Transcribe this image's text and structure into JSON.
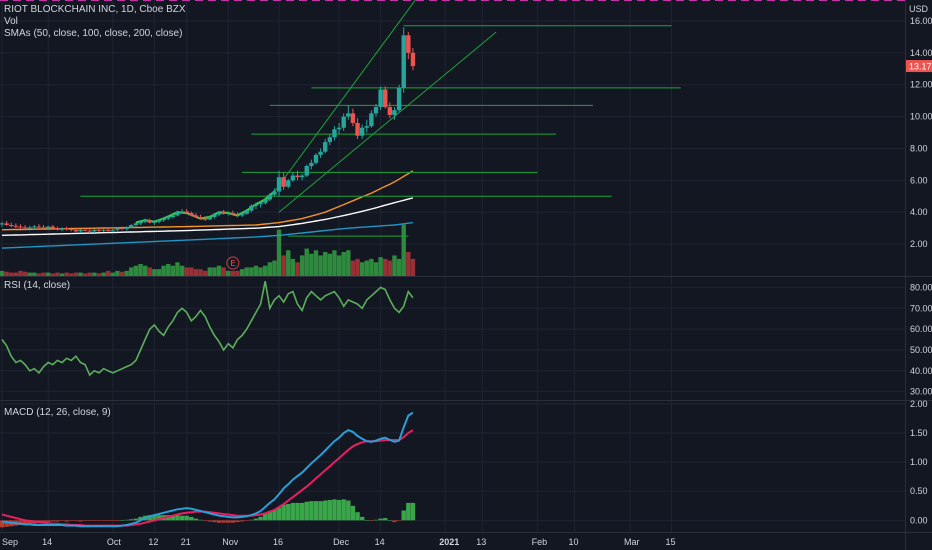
{
  "header": {
    "title": "RIOT BLOCKCHAIN INC, 1D, Cboe BZX",
    "vol_label": "Vol",
    "sma_label": "SMAs (50, close, 100, close, 200, close)",
    "currency": "USD",
    "price_tag": "13.17"
  },
  "rsi": {
    "label": "RSI (14, close)",
    "upper": 70,
    "lower": 30
  },
  "macd": {
    "label": "MACD (12, 26, close, 9)"
  },
  "colors": {
    "background": "#131722",
    "grid": "#1f2433",
    "up": "#26a69a",
    "up_fill": "#2e9e3e",
    "down": "#ef5350",
    "sma50": "#f5922b",
    "sma100": "#ffffff",
    "sma200": "#2196c6",
    "trend": "#1aa53a",
    "rsi": "#5bae5b",
    "rsi_band": "#2a1d44",
    "rsi_upper": "#26c6da",
    "rsi_lower": "#c832a8",
    "macd": "#2a9fd8",
    "signal": "#e91e63",
    "hist": "#3aa64a",
    "price_tag": "#ef5350",
    "event_badge": "#b23a3a"
  },
  "chart_data": [
    {
      "type": "candlestick",
      "name": "price",
      "y_axis_ticks": [
        "16.00",
        "14.00",
        "12.00",
        "10.00",
        "8.00",
        "6.00",
        "4.00",
        "2.00"
      ],
      "ylim": [
        0,
        17
      ],
      "x_axis_labels": [
        "Sep",
        "14",
        "Oct",
        "12",
        "21",
        "Nov",
        "16",
        "Dec",
        "14",
        "2021",
        "13",
        "Feb",
        "10",
        "Mar",
        "15"
      ],
      "xlim": [
        0,
        196
      ],
      "x_ticks_index": [
        0,
        10,
        24,
        33,
        40,
        49,
        60,
        73,
        82,
        96,
        104,
        116,
        124,
        136,
        145
      ],
      "ohlc": [
        [
          0,
          3.25,
          3.4,
          3.1,
          3.3
        ],
        [
          1,
          3.3,
          3.45,
          3.15,
          3.2
        ],
        [
          2,
          3.2,
          3.35,
          3.05,
          3.15
        ],
        [
          3,
          3.15,
          3.3,
          3.0,
          3.1
        ],
        [
          4,
          3.1,
          3.25,
          2.95,
          3.05
        ],
        [
          5,
          3.05,
          3.2,
          2.9,
          3.0
        ],
        [
          6,
          3.0,
          3.15,
          2.85,
          3.05
        ],
        [
          7,
          3.05,
          3.2,
          2.9,
          3.1
        ],
        [
          8,
          3.1,
          3.25,
          2.95,
          3.05
        ],
        [
          9,
          3.05,
          3.2,
          2.9,
          3.0
        ],
        [
          10,
          3.0,
          3.15,
          2.9,
          3.1
        ],
        [
          11,
          3.1,
          3.2,
          2.95,
          3.0
        ],
        [
          12,
          3.0,
          3.1,
          2.85,
          2.9
        ],
        [
          13,
          2.9,
          3.05,
          2.8,
          3.0
        ],
        [
          14,
          3.0,
          3.1,
          2.85,
          2.95
        ],
        [
          15,
          2.95,
          3.05,
          2.8,
          2.9
        ],
        [
          16,
          2.9,
          3.0,
          2.75,
          2.8
        ],
        [
          17,
          2.8,
          2.95,
          2.7,
          2.9
        ],
        [
          18,
          2.9,
          3.0,
          2.8,
          2.85
        ],
        [
          19,
          2.85,
          2.95,
          2.7,
          2.8
        ],
        [
          20,
          2.8,
          2.95,
          2.7,
          2.9
        ],
        [
          21,
          2.9,
          3.0,
          2.75,
          2.85
        ],
        [
          22,
          2.85,
          2.95,
          2.75,
          2.9
        ],
        [
          23,
          2.9,
          3.0,
          2.8,
          2.85
        ],
        [
          24,
          2.85,
          2.95,
          2.75,
          2.9
        ],
        [
          25,
          2.9,
          3.05,
          2.8,
          3.0
        ],
        [
          26,
          3.0,
          3.1,
          2.9,
          2.95
        ],
        [
          27,
          2.95,
          3.1,
          2.85,
          3.05
        ],
        [
          28,
          3.05,
          3.25,
          3.0,
          3.2
        ],
        [
          29,
          3.2,
          3.35,
          3.1,
          3.3
        ],
        [
          30,
          3.3,
          3.5,
          3.2,
          3.4
        ],
        [
          31,
          3.4,
          3.6,
          3.3,
          3.5
        ],
        [
          32,
          3.5,
          3.6,
          3.3,
          3.35
        ],
        [
          33,
          3.35,
          3.5,
          3.2,
          3.4
        ],
        [
          34,
          3.4,
          3.55,
          3.3,
          3.5
        ],
        [
          35,
          3.5,
          3.7,
          3.4,
          3.6
        ],
        [
          36,
          3.6,
          3.8,
          3.5,
          3.7
        ],
        [
          37,
          3.7,
          3.9,
          3.6,
          3.8
        ],
        [
          38,
          3.8,
          4.1,
          3.75,
          4.0
        ],
        [
          39,
          4.0,
          4.2,
          3.9,
          4.05
        ],
        [
          40,
          4.05,
          4.2,
          3.9,
          3.95
        ],
        [
          41,
          3.95,
          4.05,
          3.75,
          3.8
        ],
        [
          42,
          3.8,
          3.95,
          3.65,
          3.7
        ],
        [
          43,
          3.7,
          3.85,
          3.55,
          3.6
        ],
        [
          44,
          3.6,
          3.75,
          3.45,
          3.55
        ],
        [
          45,
          3.55,
          3.8,
          3.5,
          3.7
        ],
        [
          46,
          3.7,
          3.95,
          3.6,
          3.85
        ],
        [
          47,
          3.85,
          4.05,
          3.75,
          4.0
        ],
        [
          48,
          4.0,
          4.15,
          3.85,
          3.9
        ],
        [
          49,
          3.9,
          4.05,
          3.8,
          3.95
        ],
        [
          50,
          3.95,
          4.1,
          3.8,
          3.85
        ],
        [
          51,
          3.85,
          4.0,
          3.7,
          3.8
        ],
        [
          52,
          3.8,
          4.0,
          3.7,
          3.9
        ],
        [
          53,
          3.9,
          4.2,
          3.85,
          4.1
        ],
        [
          54,
          4.1,
          4.5,
          4.0,
          4.4
        ],
        [
          55,
          4.4,
          4.6,
          4.2,
          4.5
        ],
        [
          56,
          4.5,
          4.7,
          4.3,
          4.6
        ],
        [
          57,
          4.6,
          4.9,
          4.5,
          4.8
        ],
        [
          58,
          4.8,
          5.2,
          4.7,
          5.1
        ],
        [
          59,
          5.1,
          5.5,
          5.0,
          5.3
        ],
        [
          60,
          5.3,
          6.6,
          5.0,
          6.2
        ],
        [
          61,
          6.2,
          6.5,
          5.4,
          5.6
        ],
        [
          62,
          5.6,
          6.1,
          5.5,
          6.0
        ],
        [
          63,
          6.0,
          6.5,
          5.9,
          6.3
        ],
        [
          64,
          6.3,
          6.6,
          6.0,
          6.2
        ],
        [
          65,
          6.2,
          6.4,
          6.0,
          6.3
        ],
        [
          66,
          6.3,
          7.0,
          6.2,
          6.9
        ],
        [
          67,
          6.9,
          7.3,
          6.7,
          7.1
        ],
        [
          68,
          7.1,
          7.7,
          7.0,
          7.6
        ],
        [
          69,
          7.6,
          8.0,
          7.4,
          7.8
        ],
        [
          70,
          7.8,
          8.6,
          7.7,
          8.4
        ],
        [
          71,
          8.4,
          8.9,
          8.2,
          8.7
        ],
        [
          72,
          8.7,
          9.4,
          8.5,
          9.2
        ],
        [
          73,
          9.2,
          9.6,
          8.9,
          9.3
        ],
        [
          74,
          9.3,
          10.2,
          9.1,
          10.0
        ],
        [
          75,
          10.0,
          10.7,
          9.8,
          10.2
        ],
        [
          76,
          10.2,
          10.5,
          9.4,
          9.6
        ],
        [
          77,
          9.6,
          9.9,
          8.6,
          8.8
        ],
        [
          78,
          8.8,
          9.5,
          8.6,
          9.3
        ],
        [
          79,
          9.3,
          9.8,
          9.0,
          9.4
        ],
        [
          80,
          9.4,
          10.4,
          9.3,
          10.2
        ],
        [
          81,
          10.2,
          10.8,
          10.0,
          10.6
        ],
        [
          82,
          10.6,
          11.9,
          10.4,
          11.7
        ],
        [
          83,
          11.7,
          11.9,
          10.5,
          10.6
        ],
        [
          84,
          10.6,
          10.9,
          9.9,
          10.1
        ],
        [
          85,
          10.1,
          10.6,
          9.8,
          10.4
        ],
        [
          86,
          10.4,
          12.0,
          10.3,
          11.8
        ],
        [
          87,
          11.8,
          15.6,
          11.5,
          15.1
        ],
        [
          88,
          15.1,
          15.3,
          13.6,
          14.0
        ],
        [
          89,
          14.0,
          14.3,
          12.9,
          13.17
        ]
      ],
      "sma50": [
        [
          0,
          2.9
        ],
        [
          20,
          3.0
        ],
        [
          40,
          3.1
        ],
        [
          55,
          3.2
        ],
        [
          60,
          3.35
        ],
        [
          65,
          3.6
        ],
        [
          70,
          4.0
        ],
        [
          75,
          4.6
        ],
        [
          80,
          5.2
        ],
        [
          85,
          5.9
        ],
        [
          89,
          6.6
        ]
      ],
      "sma100": [
        [
          0,
          2.55
        ],
        [
          20,
          2.7
        ],
        [
          40,
          2.85
        ],
        [
          55,
          3.0
        ],
        [
          60,
          3.1
        ],
        [
          65,
          3.3
        ],
        [
          70,
          3.55
        ],
        [
          75,
          3.85
        ],
        [
          80,
          4.2
        ],
        [
          85,
          4.6
        ],
        [
          89,
          4.9
        ]
      ],
      "sma200": [
        [
          0,
          1.75
        ],
        [
          20,
          2.0
        ],
        [
          40,
          2.25
        ],
        [
          55,
          2.45
        ],
        [
          60,
          2.55
        ],
        [
          65,
          2.7
        ],
        [
          70,
          2.85
        ],
        [
          75,
          3.0
        ],
        [
          80,
          3.1
        ],
        [
          85,
          3.2
        ],
        [
          89,
          3.35
        ]
      ],
      "volume": [
        0.3,
        0.25,
        0.2,
        0.2,
        0.3,
        0.25,
        0.2,
        0.2,
        0.15,
        0.2,
        0.2,
        0.15,
        0.2,
        0.15,
        0.2,
        0.15,
        0.2,
        0.2,
        0.15,
        0.2,
        0.2,
        0.15,
        0.2,
        0.3,
        0.2,
        0.3,
        0.25,
        0.3,
        0.5,
        0.6,
        0.7,
        0.6,
        0.5,
        0.4,
        0.4,
        0.6,
        0.7,
        0.6,
        0.8,
        0.6,
        0.5,
        0.5,
        0.4,
        0.4,
        0.3,
        0.5,
        0.5,
        0.6,
        0.5,
        0.3,
        0.3,
        0.3,
        0.4,
        0.5,
        0.5,
        0.6,
        0.5,
        0.6,
        0.8,
        0.9,
        2.7,
        1.2,
        1.5,
        1.0,
        0.8,
        1.2,
        1.6,
        1.3,
        1.5,
        1.2,
        1.4,
        1.3,
        1.5,
        1.2,
        1.4,
        1.5,
        0.9,
        1.0,
        0.8,
        0.9,
        1.0,
        0.8,
        1.1,
        1.0,
        0.9,
        1.2,
        1.0,
        3.0,
        1.4,
        1.0
      ],
      "volume_ylim": [
        0,
        3.5
      ],
      "horizontal_levels": [
        15.7,
        11.8,
        10.7,
        8.9,
        6.5,
        5.0,
        2.5
      ]
    },
    {
      "type": "line",
      "name": "RSI",
      "y_axis_ticks": [
        "80.00",
        "70.00",
        "60.00",
        "50.00",
        "40.00",
        "30.00"
      ],
      "ylim": [
        26,
        85
      ],
      "values": [
        55,
        52,
        47,
        44,
        45,
        43,
        40,
        41,
        39,
        42,
        44,
        43,
        45,
        44,
        46,
        45,
        47,
        44,
        43,
        38,
        40,
        39,
        41,
        40,
        39,
        40,
        41,
        42,
        43,
        45,
        50,
        55,
        60,
        62,
        59,
        57,
        61,
        64,
        68,
        70,
        68,
        64,
        66,
        69,
        66,
        61,
        57,
        54,
        50,
        53,
        51,
        55,
        57,
        60,
        64,
        68,
        72,
        83,
        70,
        74,
        76,
        73,
        77,
        78,
        72,
        69,
        75,
        78,
        76,
        74,
        76,
        77,
        78,
        75,
        71,
        74,
        73,
        72,
        70,
        74,
        76,
        78,
        80,
        79,
        74,
        70,
        68,
        71,
        78,
        75
      ]
    },
    {
      "type": "line",
      "name": "MACD",
      "y_axis_ticks": [
        "2.00",
        "1.50",
        "1.00",
        "0.50",
        "0.00"
      ],
      "ylim": [
        -0.2,
        2.05
      ],
      "macd": [
        -0.02,
        -0.03,
        -0.04,
        -0.05,
        -0.06,
        -0.07,
        -0.07,
        -0.08,
        -0.08,
        -0.08,
        -0.08,
        -0.08,
        -0.08,
        -0.08,
        -0.09,
        -0.09,
        -0.09,
        -0.1,
        -0.1,
        -0.1,
        -0.1,
        -0.1,
        -0.1,
        -0.1,
        -0.1,
        -0.1,
        -0.09,
        -0.08,
        -0.06,
        -0.04,
        0.0,
        0.04,
        0.07,
        0.09,
        0.11,
        0.13,
        0.15,
        0.17,
        0.19,
        0.2,
        0.21,
        0.2,
        0.18,
        0.16,
        0.14,
        0.12,
        0.1,
        0.08,
        0.07,
        0.06,
        0.05,
        0.05,
        0.06,
        0.07,
        0.09,
        0.12,
        0.16,
        0.23,
        0.3,
        0.36,
        0.45,
        0.55,
        0.62,
        0.7,
        0.76,
        0.82,
        0.9,
        0.98,
        1.05,
        1.12,
        1.2,
        1.28,
        1.36,
        1.42,
        1.5,
        1.55,
        1.52,
        1.45,
        1.4,
        1.36,
        1.35,
        1.37,
        1.4,
        1.42,
        1.38,
        1.35,
        1.37,
        1.6,
        1.8,
        1.85
      ],
      "signal": [
        0.1,
        0.08,
        0.06,
        0.04,
        0.02,
        0.0,
        -0.01,
        -0.02,
        -0.03,
        -0.04,
        -0.05,
        -0.06,
        -0.06,
        -0.07,
        -0.07,
        -0.08,
        -0.08,
        -0.08,
        -0.09,
        -0.09,
        -0.09,
        -0.09,
        -0.09,
        -0.09,
        -0.09,
        -0.09,
        -0.09,
        -0.09,
        -0.08,
        -0.07,
        -0.06,
        -0.04,
        -0.02,
        0.0,
        0.02,
        0.04,
        0.06,
        0.08,
        0.1,
        0.12,
        0.13,
        0.14,
        0.15,
        0.15,
        0.15,
        0.14,
        0.13,
        0.12,
        0.11,
        0.1,
        0.09,
        0.08,
        0.08,
        0.08,
        0.08,
        0.09,
        0.1,
        0.12,
        0.15,
        0.18,
        0.23,
        0.28,
        0.34,
        0.4,
        0.46,
        0.52,
        0.58,
        0.65,
        0.72,
        0.79,
        0.86,
        0.93,
        1.0,
        1.07,
        1.14,
        1.21,
        1.27,
        1.31,
        1.34,
        1.36,
        1.36,
        1.36,
        1.37,
        1.38,
        1.38,
        1.38,
        1.38,
        1.43,
        1.5,
        1.55
      ]
    }
  ]
}
